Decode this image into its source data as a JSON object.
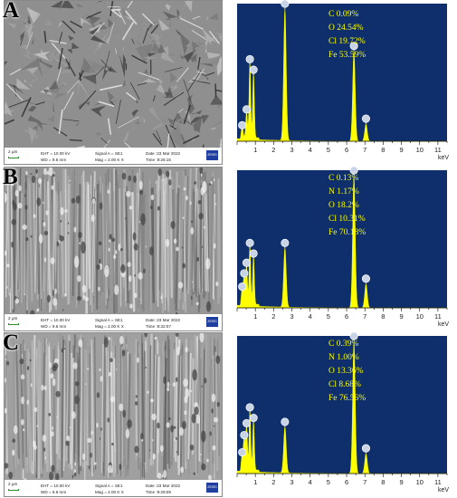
{
  "panels": [
    {
      "letter": "A",
      "sem": {
        "scale": "2 μm",
        "eht": "EHT = 10.00 kV",
        "wd": "WD = 9.6 mm",
        "signal": "Signal A = SE1",
        "mag": "Mag = 2.00 K X",
        "date": "Date :23 Mar 2022",
        "time": "Time :9:26:15",
        "logo": "ZEISS"
      },
      "eds": {
        "composition": [
          "C 0.09%",
          "O 24.54%",
          "Cl 19.72%",
          "Fe 53.59%"
        ],
        "peaks": [
          {
            "kev": 0.28,
            "height": 0.08
          },
          {
            "kev": 0.52,
            "height": 0.2
          },
          {
            "kev": 0.7,
            "height": 0.58
          },
          {
            "kev": 0.9,
            "height": 0.5
          },
          {
            "kev": 2.62,
            "height": 1.0
          },
          {
            "kev": 6.4,
            "height": 0.68
          },
          {
            "kev": 7.06,
            "height": 0.13
          }
        ]
      }
    },
    {
      "letter": "B",
      "sem": {
        "scale": "2 μm",
        "eht": "EHT = 10.00 kV",
        "wd": "WD = 9.6 mm",
        "signal": "Signal A = SE1",
        "mag": "Mag = 2.00 K X",
        "date": "Date :23 Mar 2022",
        "time": "Time :9:32:07",
        "logo": "ZEISS"
      },
      "eds": {
        "composition": [
          "C 0.13%",
          "N 1.17%",
          "O 18.2%",
          "Cl 10.31%",
          "Fe 70.18%"
        ],
        "peaks": [
          {
            "kev": 0.28,
            "height": 0.12
          },
          {
            "kev": 0.39,
            "height": 0.22
          },
          {
            "kev": 0.52,
            "height": 0.3
          },
          {
            "kev": 0.7,
            "height": 0.45
          },
          {
            "kev": 0.9,
            "height": 0.37
          },
          {
            "kev": 2.62,
            "height": 0.45
          },
          {
            "kev": 6.4,
            "height": 1.0
          },
          {
            "kev": 7.06,
            "height": 0.18
          }
        ]
      }
    },
    {
      "letter": "C",
      "sem": {
        "scale": "2 μm",
        "eht": "EHT = 10.00 kV",
        "wd": "WD = 9.6 mm",
        "signal": "Signal A = SE1",
        "mag": "Mag = 2.00 K X",
        "date": "Date :23 Mar 2022",
        "time": "Time :9:29:09",
        "logo": "ZEISS"
      },
      "eds": {
        "composition": [
          "C 0.39%",
          "N 1.00%",
          "O 13.36%",
          "Cl 8.68%",
          "Fe 76.56%"
        ],
        "peaks": [
          {
            "kev": 0.28,
            "height": 0.12
          },
          {
            "kev": 0.39,
            "height": 0.25
          },
          {
            "kev": 0.52,
            "height": 0.34
          },
          {
            "kev": 0.7,
            "height": 0.46
          },
          {
            "kev": 0.9,
            "height": 0.38
          },
          {
            "kev": 2.62,
            "height": 0.35
          },
          {
            "kev": 6.4,
            "height": 1.0
          },
          {
            "kev": 7.06,
            "height": 0.15
          }
        ]
      }
    }
  ],
  "axis": {
    "ticks": [
      "1",
      "2",
      "3",
      "4",
      "5",
      "6",
      "7",
      "8",
      "9",
      "10",
      "11"
    ],
    "unit": "keV",
    "xlim": [
      0,
      11.5
    ]
  },
  "colors": {
    "spectrum_bg": "#0e2f6b",
    "spectrum_fill": "#ffff00",
    "marker_fill": "#c9d3e6"
  }
}
